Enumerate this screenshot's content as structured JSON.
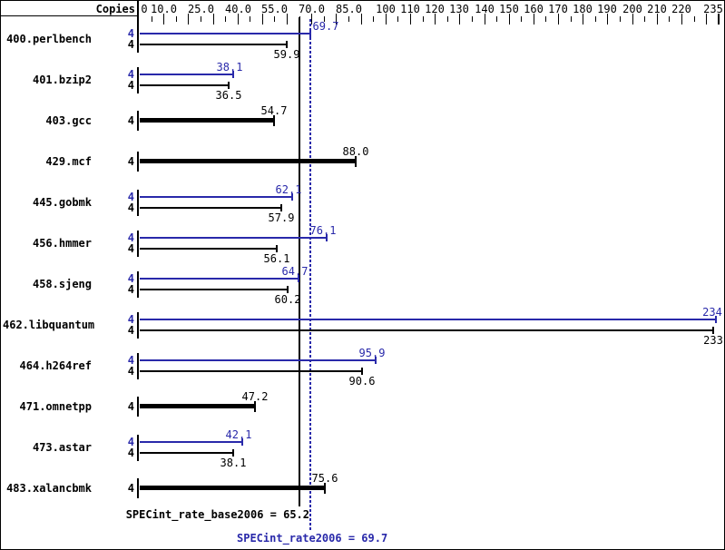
{
  "header": {
    "copies_label": "Copies"
  },
  "axis": {
    "tick_labels": [
      "0",
      "10.0",
      "25.0",
      "40.0",
      "55.0",
      "70.0",
      "85.0",
      "100",
      "110",
      "120",
      "130",
      "140",
      "150",
      "160",
      "170",
      "180",
      "190",
      "200",
      "210",
      "220",
      "235"
    ],
    "tick_values": [
      0,
      10,
      25,
      40,
      55,
      70,
      85,
      100,
      110,
      120,
      130,
      140,
      150,
      160,
      170,
      180,
      190,
      200,
      210,
      220,
      235
    ],
    "minor_tick_step": 5,
    "max": 235
  },
  "benchmarks": [
    {
      "name": "400.perlbench",
      "copies": 4,
      "style": "pair",
      "peak": 69.7,
      "peak_label": "69.7",
      "base": 59.9,
      "base_label": "59.9"
    },
    {
      "name": "401.bzip2",
      "copies": 4,
      "style": "pair",
      "peak": 38.1,
      "peak_label": "38.1",
      "base": 36.5,
      "base_label": "36.5"
    },
    {
      "name": "403.gcc",
      "copies": 4,
      "style": "single",
      "base": 54.7,
      "base_label": "54.7"
    },
    {
      "name": "429.mcf",
      "copies": 4,
      "style": "single",
      "base": 88.0,
      "base_label": "88.0"
    },
    {
      "name": "445.gobmk",
      "copies": 4,
      "style": "pair",
      "peak": 62.1,
      "peak_label": "62.1",
      "base": 57.9,
      "base_label": "57.9"
    },
    {
      "name": "456.hmmer",
      "copies": 4,
      "style": "pair",
      "peak": 76.1,
      "peak_label": "76.1",
      "base": 56.1,
      "base_label": "56.1"
    },
    {
      "name": "458.sjeng",
      "copies": 4,
      "style": "pair",
      "peak": 64.7,
      "peak_label": "64.7",
      "base": 60.2,
      "base_label": "60.2"
    },
    {
      "name": "462.libquantum",
      "copies": 4,
      "style": "pair",
      "peak": 234,
      "peak_label": "234",
      "base": 233,
      "base_label": "233"
    },
    {
      "name": "464.h264ref",
      "copies": 4,
      "style": "pair",
      "peak": 95.9,
      "peak_label": "95.9",
      "base": 90.6,
      "base_label": "90.6"
    },
    {
      "name": "471.omnetpp",
      "copies": 4,
      "style": "single",
      "base": 47.2,
      "base_label": "47.2"
    },
    {
      "name": "473.astar",
      "copies": 4,
      "style": "pair",
      "peak": 42.1,
      "peak_label": "42.1",
      "base": 38.1,
      "base_label": "38.1"
    },
    {
      "name": "483.xalancbmk",
      "copies": 4,
      "style": "single",
      "base": 75.6,
      "base_label": "75.6"
    }
  ],
  "summary": {
    "base_text": "SPECint_rate_base2006 = 65.2",
    "base_value": 65.2,
    "peak_text": "SPECint_rate2006 = 69.7",
    "peak_value": 69.7
  },
  "colors": {
    "peak_blue": "#2929aa",
    "black": "#000000"
  },
  "chart_data": {
    "type": "bar",
    "orientation": "horizontal",
    "title": "",
    "ylabel": "Copies",
    "categories": [
      "400.perlbench",
      "401.bzip2",
      "403.gcc",
      "429.mcf",
      "445.gobmk",
      "456.hmmer",
      "458.sjeng",
      "462.libquantum",
      "464.h264ref",
      "471.omnetpp",
      "473.astar",
      "483.xalancbmk"
    ],
    "copies": [
      4,
      4,
      4,
      4,
      4,
      4,
      4,
      4,
      4,
      4,
      4,
      4
    ],
    "series": [
      {
        "name": "base",
        "color": "#000000",
        "values": [
          59.9,
          36.5,
          54.7,
          88.0,
          57.9,
          56.1,
          60.2,
          233,
          90.6,
          47.2,
          38.1,
          75.6
        ]
      },
      {
        "name": "peak",
        "color": "#2929aa",
        "values": [
          69.7,
          38.1,
          null,
          null,
          62.1,
          76.1,
          64.7,
          234,
          95.9,
          null,
          42.1,
          null
        ]
      }
    ],
    "single_thick_bar_categories": [
      "403.gcc",
      "429.mcf",
      "471.omnetpp",
      "483.xalancbmk"
    ],
    "reference_lines": [
      {
        "label": "SPECint_rate_base2006 = 65.2",
        "value": 65.2,
        "style": "solid",
        "color": "#000000"
      },
      {
        "label": "SPECint_rate2006 = 69.7",
        "value": 69.7,
        "style": "dotted",
        "color": "#2929aa"
      }
    ],
    "xlim": [
      0,
      235
    ],
    "x_ticks": [
      0,
      10,
      25,
      40,
      55,
      70,
      85,
      100,
      110,
      120,
      130,
      140,
      150,
      160,
      170,
      180,
      190,
      200,
      210,
      220,
      235
    ],
    "grid": false,
    "legend_position": "none"
  }
}
